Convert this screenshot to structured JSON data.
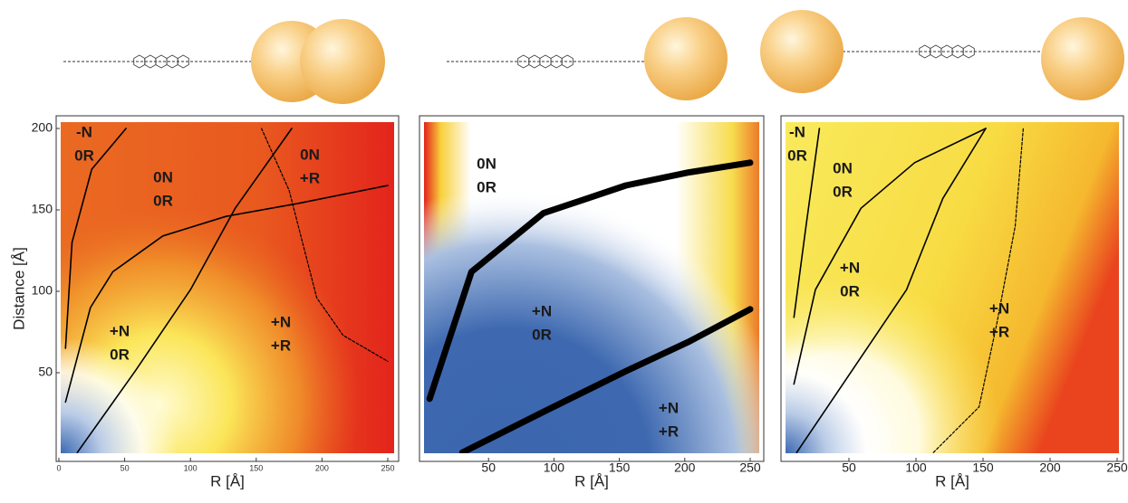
{
  "chart_data": [
    {
      "type": "contour",
      "xlabel": "R [Å]",
      "ylabel": "Distance [Å]",
      "xlim": [
        0,
        250
      ],
      "ylim": [
        0,
        200
      ],
      "xticks": [
        0,
        50,
        100,
        150,
        200,
        250
      ],
      "yticks": [
        50,
        100,
        150,
        200
      ],
      "annotations": [
        [
          "-N",
          "0R"
        ],
        [
          "0N",
          "0R"
        ],
        [
          "0N",
          "+R"
        ],
        [
          "+N",
          "0R"
        ],
        [
          "+N",
          "+R"
        ]
      ],
      "series": [
        {
          "color": "#000000",
          "style": "solid",
          "width": 1.6,
          "x": [
            5,
            10,
            25,
            51
          ],
          "values": [
            65,
            130,
            175,
            200
          ]
        },
        {
          "color": "#000000",
          "style": "solid",
          "width": 1.6,
          "x": [
            5,
            24,
            41,
            79,
            127,
            182,
            250
          ],
          "values": [
            32,
            90,
            112,
            134,
            146,
            154,
            165
          ]
        },
        {
          "color": "#000000",
          "style": "solid",
          "width": 1.6,
          "x": [
            14,
            58,
            100,
            134,
            177
          ],
          "values": [
            1,
            51,
            101,
            151,
            200
          ]
        },
        {
          "color": "#000000",
          "style": "dashed",
          "width": 1.2,
          "x": [
            154,
            175,
            196,
            216,
            250
          ],
          "values": [
            200,
            162,
            96,
            73,
            57
          ]
        }
      ]
    },
    {
      "type": "contour",
      "xlabel": "R [Å]",
      "xlim": [
        0,
        250
      ],
      "ylim": [
        0,
        200
      ],
      "xticks": [
        50,
        100,
        150,
        200,
        250
      ],
      "annotations": [
        [
          "0N",
          "0R"
        ],
        [
          "+N",
          "0R"
        ],
        [
          "+N",
          "+R"
        ]
      ],
      "series": [
        {
          "color": "#000000",
          "style": "solid",
          "width": 7,
          "x": [
            5,
            37,
            92,
            155,
            203,
            250
          ],
          "values": [
            34,
            112,
            148,
            165,
            173,
            179
          ]
        },
        {
          "color": "#000000",
          "style": "solid",
          "width": 7,
          "x": [
            30,
            92,
            155,
            203,
            250
          ],
          "values": [
            1,
            26,
            51,
            69,
            89
          ]
        }
      ]
    },
    {
      "type": "contour",
      "xlabel": "R [Å]",
      "xlim": [
        0,
        250
      ],
      "ylim": [
        0,
        200
      ],
      "xticks": [
        50,
        100,
        150,
        200,
        250
      ],
      "annotations": [
        [
          "-N",
          "0R"
        ],
        [
          "0N",
          "0R"
        ],
        [
          "+N",
          "0R"
        ],
        [
          "+N",
          "+R"
        ]
      ],
      "series": [
        {
          "color": "#000000",
          "style": "solid",
          "width": 1.6,
          "x": [
            9,
            18,
            28
          ],
          "values": [
            84,
            140,
            200
          ]
        },
        {
          "color": "#000000",
          "style": "solid",
          "width": 1.6,
          "x": [
            9,
            25,
            59,
            99,
            152
          ],
          "values": [
            43,
            101,
            151,
            179,
            200
          ]
        },
        {
          "color": "#000000",
          "style": "solid",
          "width": 1.6,
          "x": [
            11,
            52,
            93,
            120,
            152
          ],
          "values": [
            1,
            51,
            101,
            157,
            200
          ]
        },
        {
          "color": "#000000",
          "style": "dashed",
          "width": 1.2,
          "x": [
            113,
            147,
            160,
            174,
            180
          ],
          "values": [
            1,
            29,
            79,
            140,
            200
          ]
        }
      ]
    }
  ]
}
